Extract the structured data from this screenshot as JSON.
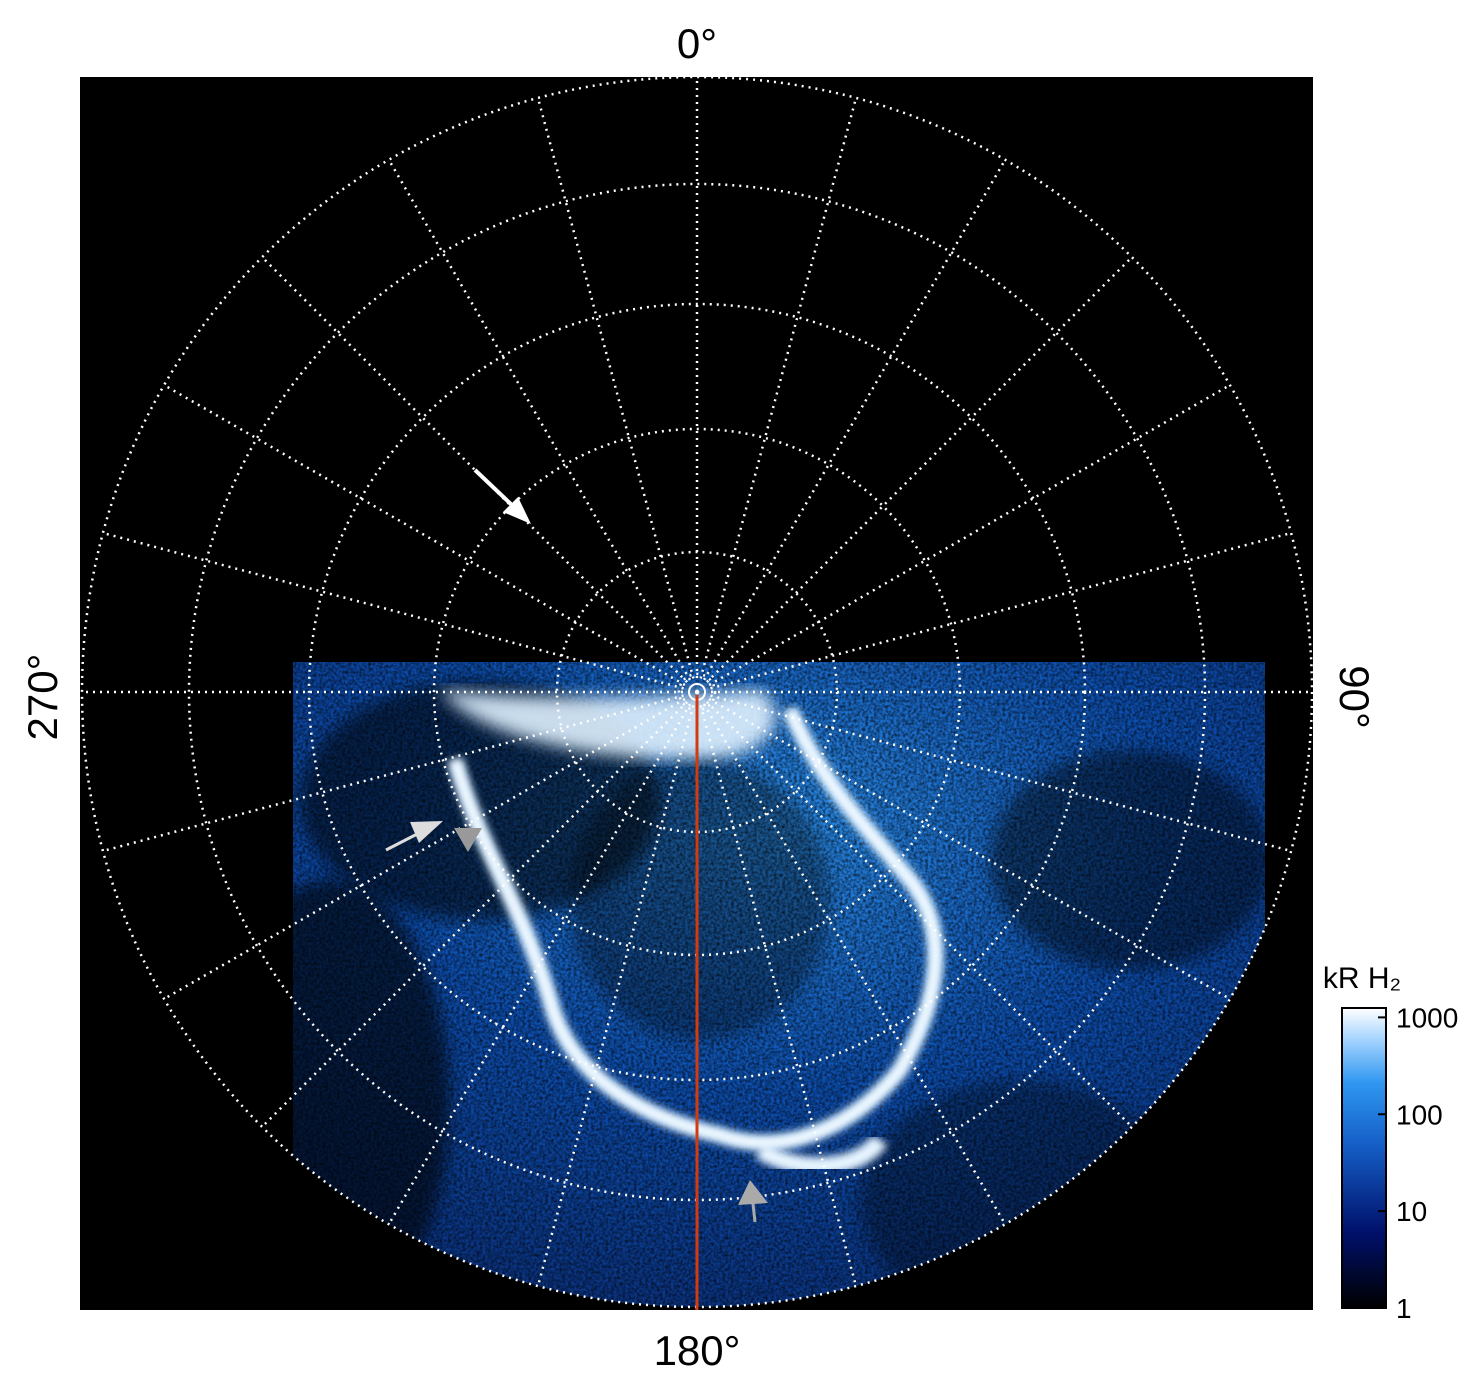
{
  "axes": {
    "top_label": "0°",
    "right_label": "90°",
    "bottom_label": "180°",
    "left_label": "270°"
  },
  "colorbar": {
    "title": "kR H₂",
    "scale": "log",
    "lim": [
      1,
      1250
    ],
    "ticks": [
      1,
      10,
      100,
      1000
    ]
  }
}
